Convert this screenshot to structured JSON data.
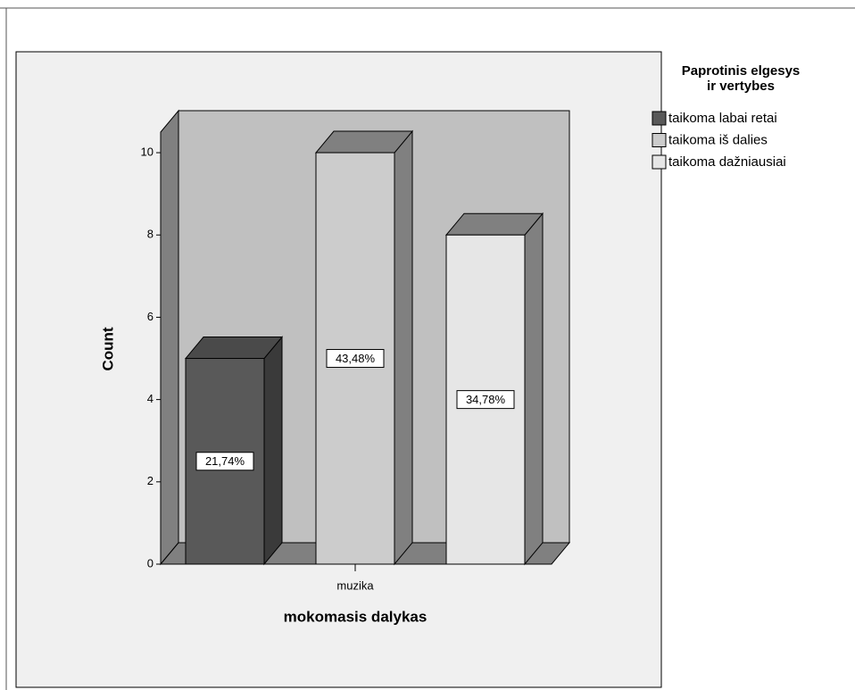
{
  "chart_data": {
    "type": "bar3d",
    "x_label": "mokomasis dalykas",
    "y_label": "Count",
    "legend_title": [
      "Paprotinis elgesys",
      "ir vertybes"
    ],
    "categories": [
      "muzika"
    ],
    "series": [
      {
        "name": "taikoma labai retai",
        "color": "#595959",
        "values": [
          5
        ],
        "value_labels": [
          "21,74%"
        ]
      },
      {
        "name": "taikoma iš dalies",
        "color": "#cccccc",
        "values": [
          10
        ],
        "value_labels": [
          "43,48%"
        ]
      },
      {
        "name": "taikoma dažniausiai",
        "color": "#e6e6e6",
        "values": [
          8
        ],
        "value_labels": [
          "34,78%"
        ]
      }
    ],
    "ylim": [
      0,
      10.5
    ],
    "yticks": [
      0,
      2,
      4,
      6,
      8,
      10
    ]
  }
}
